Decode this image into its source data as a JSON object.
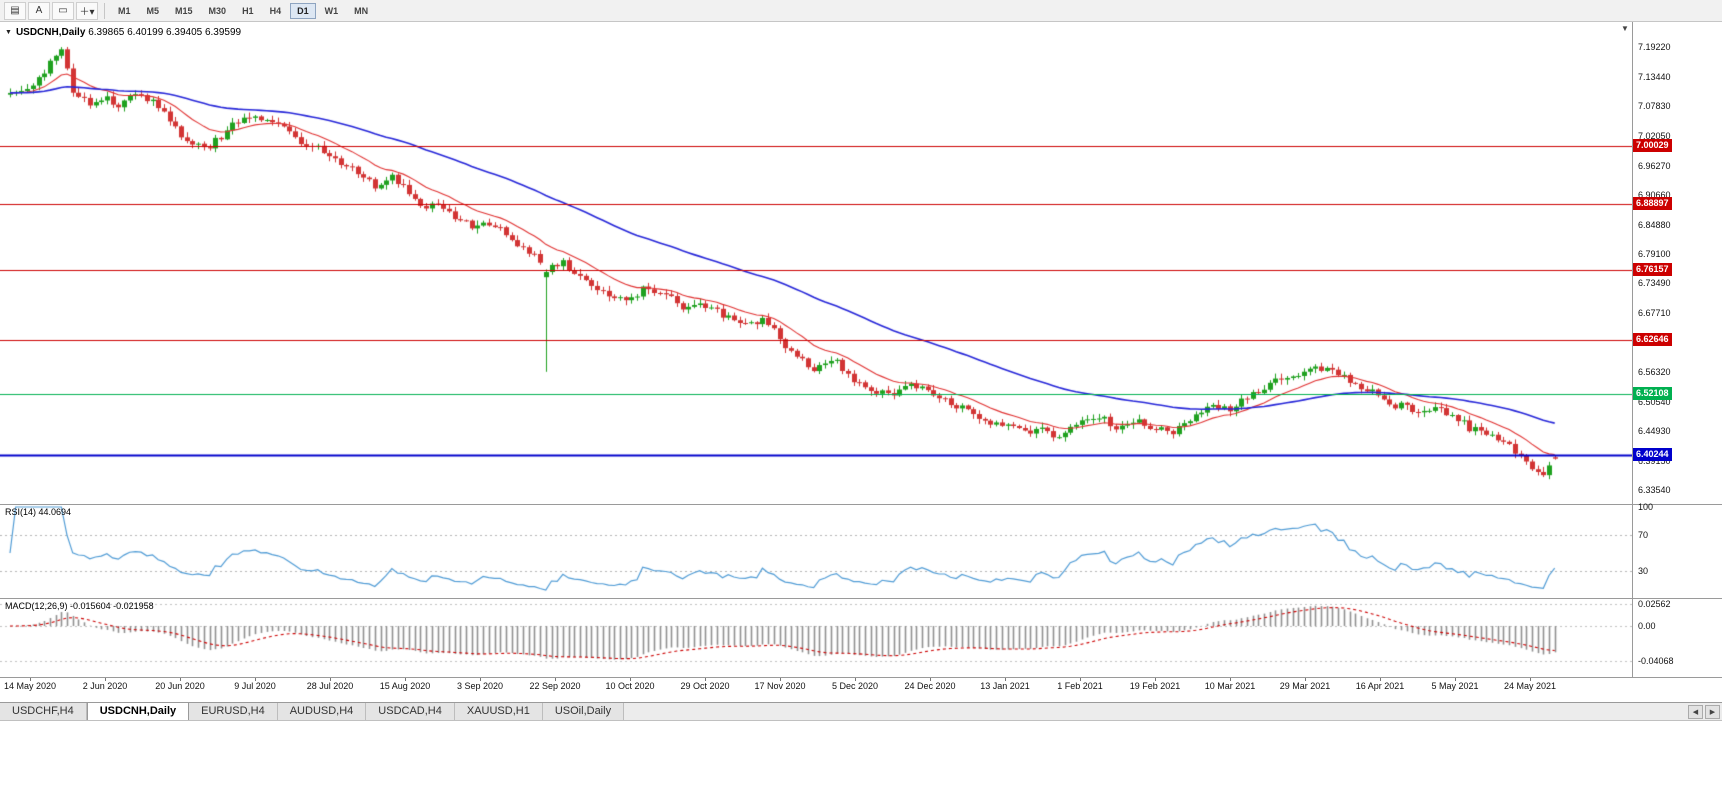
{
  "toolbar": {
    "icons": [
      {
        "name": "chart-window-icon",
        "glyph": "▤"
      },
      {
        "name": "text-annotation-icon",
        "glyph": "A"
      },
      {
        "name": "shape-tool-icon",
        "glyph": "▭"
      },
      {
        "name": "draw-tools-dropdown-icon",
        "glyph": "＋",
        "dropdown": "▾"
      }
    ],
    "timeframes": [
      "M1",
      "M5",
      "M15",
      "M30",
      "H1",
      "H4",
      "D1",
      "W1",
      "MN"
    ],
    "active_timeframe": "D1"
  },
  "chart": {
    "collapse_arrow": "▼",
    "title_symbol": "USDCNH,Daily",
    "title_ohlc": "6.39865 6.40199 6.39405 6.39599",
    "shift_marker": "▼"
  },
  "tabs": {
    "items": [
      {
        "label": "USDCHF,H4",
        "active": false
      },
      {
        "label": "USDCNH,Daily",
        "active": true
      },
      {
        "label": "EURUSD,H4",
        "active": false
      },
      {
        "label": "AUDUSD,H4",
        "active": false
      },
      {
        "label": "USDCAD,H4",
        "active": false
      },
      {
        "label": "XAUUSD,H1",
        "active": false
      },
      {
        "label": "USOil,Daily",
        "active": false
      }
    ],
    "scroll_left": "◀",
    "scroll_right": "▶"
  },
  "chart_data": {
    "type": "candlestick",
    "title": "USDCNH,Daily",
    "symbol": "USDCNH",
    "period": "Daily",
    "current_candle": {
      "open": 6.39865,
      "high": 6.40199,
      "low": 6.39405,
      "close": 6.39599
    },
    "price_min": 6.3083,
    "price_max": 7.2406,
    "candle_count": 272,
    "up_color": "#1fa11f",
    "down_color": "#d23434",
    "ma_fast": {
      "period": 13,
      "color": "#e03232"
    },
    "ma_slow": {
      "period": 55,
      "color": "#2626d8"
    },
    "price_axis": {
      "tick_labels": [
        "7.19220",
        "7.13440",
        "7.07830",
        "7.02050",
        "6.96270",
        "6.90660",
        "6.84880",
        "6.79100",
        "6.73490",
        "6.67710",
        "6.62100",
        "6.56320",
        "6.50540",
        "6.44930",
        "6.39150",
        "6.33540"
      ]
    },
    "x_tick_labels": [
      "14 May 2020",
      "2 Jun 2020",
      "20 Jun 2020",
      "9 Jul 2020",
      "28 Jul 2020",
      "15 Aug 2020",
      "3 Sep 2020",
      "22 Sep 2020",
      "10 Oct 2020",
      "29 Oct 2020",
      "17 Nov 2020",
      "5 Dec 2020",
      "24 Dec 2020",
      "13 Jan 2021",
      "1 Feb 2021",
      "19 Feb 2021",
      "10 Mar 2021",
      "29 Mar 2021",
      "16 Apr 2021",
      "5 May 2021",
      "24 May 2021"
    ],
    "levels": [
      {
        "label": "7.00029",
        "value": 7.00029,
        "color": "#cc0000",
        "line_width": 1
      },
      {
        "label": "6.88897",
        "value": 6.88897,
        "color": "#cc0000",
        "line_width": 1
      },
      {
        "label": "6.76157",
        "value": 6.76157,
        "color": "#cc0000",
        "line_width": 1
      },
      {
        "label": "6.62646",
        "value": 6.62646,
        "color": "#cc0000",
        "line_width": 1
      },
      {
        "label": "6.52108",
        "value": 6.52108,
        "color": "#00b050",
        "line_width": 1
      },
      {
        "label": "6.40244",
        "value": 6.40244,
        "color": "#0000cc",
        "line_width": 2
      }
    ],
    "price_path_anchors": [
      [
        0,
        7.1
      ],
      [
        4,
        7.115
      ],
      [
        7,
        7.16
      ],
      [
        9,
        7.185
      ],
      [
        11,
        7.11
      ],
      [
        14,
        7.08
      ],
      [
        16,
        7.095
      ],
      [
        19,
        7.08
      ],
      [
        22,
        7.1
      ],
      [
        25,
        7.085
      ],
      [
        28,
        7.05
      ],
      [
        31,
        7.005
      ],
      [
        34,
        6.995
      ],
      [
        36,
        7.01
      ],
      [
        40,
        7.05
      ],
      [
        43,
        7.06
      ],
      [
        47,
        7.04
      ],
      [
        50,
        7.015
      ],
      [
        54,
        6.995
      ],
      [
        57,
        6.975
      ],
      [
        61,
        6.95
      ],
      [
        64,
        6.925
      ],
      [
        67,
        6.94
      ],
      [
        70,
        6.91
      ],
      [
        72,
        6.88
      ],
      [
        75,
        6.895
      ],
      [
        78,
        6.86
      ],
      [
        81,
        6.845
      ],
      [
        85,
        6.85
      ],
      [
        88,
        6.815
      ],
      [
        92,
        6.79
      ],
      [
        94,
        6.76
      ],
      [
        97,
        6.775
      ],
      [
        100,
        6.745
      ],
      [
        104,
        6.72
      ],
      [
        108,
        6.7
      ],
      [
        112,
        6.73
      ],
      [
        115,
        6.71
      ],
      [
        119,
        6.685
      ],
      [
        121,
        6.7
      ],
      [
        125,
        6.675
      ],
      [
        128,
        6.655
      ],
      [
        132,
        6.665
      ],
      [
        135,
        6.63
      ],
      [
        137,
        6.6
      ],
      [
        141,
        6.572
      ],
      [
        144,
        6.592
      ],
      [
        148,
        6.548
      ],
      [
        151,
        6.53
      ],
      [
        155,
        6.524
      ],
      [
        158,
        6.536
      ],
      [
        161,
        6.525
      ],
      [
        164,
        6.51
      ],
      [
        168,
        6.49
      ],
      [
        171,
        6.47
      ],
      [
        174,
        6.46
      ],
      [
        178,
        6.445
      ],
      [
        181,
        6.46
      ],
      [
        184,
        6.435
      ],
      [
        187,
        6.46
      ],
      [
        191,
        6.48
      ],
      [
        194,
        6.455
      ],
      [
        198,
        6.47
      ],
      [
        200,
        6.455
      ],
      [
        204,
        6.445
      ],
      [
        207,
        6.47
      ],
      [
        211,
        6.5
      ],
      [
        214,
        6.49
      ],
      [
        217,
        6.515
      ],
      [
        221,
        6.54
      ],
      [
        224,
        6.555
      ],
      [
        227,
        6.565
      ],
      [
        230,
        6.572
      ],
      [
        234,
        6.555
      ],
      [
        237,
        6.535
      ],
      [
        240,
        6.52
      ],
      [
        243,
        6.5
      ],
      [
        247,
        6.49
      ],
      [
        250,
        6.495
      ],
      [
        253,
        6.48
      ],
      [
        256,
        6.455
      ],
      [
        260,
        6.44
      ],
      [
        263,
        6.42
      ],
      [
        266,
        6.395
      ],
      [
        268,
        6.37
      ],
      [
        269,
        6.358
      ],
      [
        270,
        6.385
      ],
      [
        271,
        6.396
      ]
    ],
    "candle_overrides": [
      {
        "index": 94,
        "open": 6.747,
        "high": 6.762,
        "low": 6.564,
        "close": 6.757
      },
      {
        "index": 271,
        "open": 6.39865,
        "high": 6.40199,
        "low": 6.39405,
        "close": 6.39599
      }
    ],
    "indicators": [
      {
        "name": "RSI",
        "label": "RSI(14)",
        "value": "44.0694",
        "period": 14,
        "levels": [
          70,
          30
        ],
        "scale": [
          {
            "label": "100",
            "value": 100
          },
          {
            "label": "70",
            "value": 70
          },
          {
            "label": "30",
            "value": 30
          }
        ],
        "color": "#4f9bd5"
      },
      {
        "name": "MACD",
        "label": "MACD(12,26,9)",
        "values": "-0.015604 -0.021958",
        "fast": 12,
        "slow": 26,
        "signal": 9,
        "scale": [
          {
            "label": "0.02562",
            "value": 0.02562
          },
          {
            "label": "0.00",
            "value": 0
          },
          {
            "label": "-0.04068",
            "value": -0.04068
          }
        ],
        "histogram_color": "#909090",
        "signal_color": "#cc0000"
      }
    ]
  }
}
